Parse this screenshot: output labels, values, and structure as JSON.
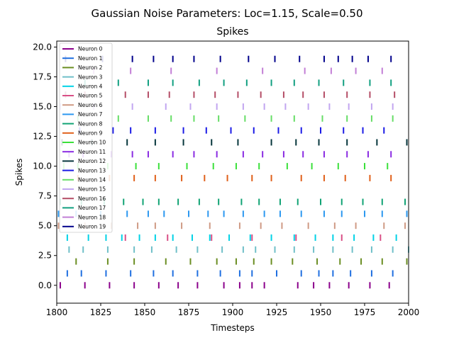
{
  "figure": {
    "suptitle": "Gaussian Noise Parameters: Loc=1.15, Scale=0.50"
  },
  "chart_data": {
    "type": "scatter",
    "marker": "vertical-line",
    "title": "Spikes",
    "xlabel": "Timesteps",
    "ylabel": "Spikes",
    "xlim": [
      1800,
      2000
    ],
    "ylim": [
      -1.5,
      20.5
    ],
    "xticks": [
      1800,
      1825,
      1850,
      1875,
      1900,
      1925,
      1950,
      1975,
      2000
    ],
    "xtick_labels": [
      "1800",
      "1825",
      "1850",
      "1875",
      "1900",
      "1925",
      "1950",
      "1975",
      "2000"
    ],
    "yticks": [
      0,
      2.5,
      5,
      7.5,
      10,
      12.5,
      15,
      17.5,
      20
    ],
    "ytick_labels": [
      "0.0",
      "2.5",
      "5.0",
      "7.5",
      "10.0",
      "12.5",
      "15.0",
      "17.5",
      "20.0"
    ],
    "grid": false,
    "legend_position": "upper-left",
    "series": [
      {
        "name": "Neuron 0",
        "color": "#8b008b",
        "y": 0,
        "x": [
          1802,
          1816,
          1830,
          1844,
          1858,
          1869,
          1880,
          1895,
          1904,
          1911,
          1918,
          1937,
          1946,
          1955,
          1966,
          1978,
          1989
        ]
      },
      {
        "name": "Neuron 1",
        "color": "#1f6fe0",
        "y": 1,
        "x": [
          1806,
          1814,
          1828,
          1842,
          1855,
          1866,
          1880,
          1893,
          1904,
          1911,
          1925,
          1939,
          1949,
          1957,
          1967,
          1979,
          1991
        ]
      },
      {
        "name": "Neuron 2",
        "color": "#6b8e23",
        "y": 2,
        "x": [
          1811,
          1829,
          1844,
          1862,
          1876,
          1891,
          1902,
          1912,
          1922,
          1934,
          1948,
          1961,
          1973,
          1985,
          1999
        ]
      },
      {
        "name": "Neuron 3",
        "color": "#6fbfc8",
        "y": 3,
        "x": [
          1807,
          1815,
          1829,
          1844,
          1854,
          1868,
          1880,
          1894,
          1906,
          1913,
          1924,
          1935,
          1946,
          1957,
          1968,
          1979,
          1991,
          2000
        ]
      },
      {
        "name": "Neuron 4",
        "color": "#00d2e6",
        "y": 4,
        "x": [
          1806,
          1818,
          1828,
          1837,
          1847,
          1856,
          1866,
          1877,
          1887,
          1898,
          1910,
          1922,
          1935,
          1947,
          1957,
          1969,
          1980,
          1993
        ]
      },
      {
        "name": "Neuron 5",
        "color": "#d94f86",
        "y": 4,
        "x": [
          1839,
          1863,
          1888,
          1911,
          1936,
          1962,
          1984
        ]
      },
      {
        "name": "Neuron 6",
        "color": "#cf9a84",
        "y": 5,
        "x": [
          1801,
          1816,
          1831,
          1846,
          1856,
          1871,
          1887,
          1904,
          1916,
          1928,
          1943,
          1958,
          1970,
          1986,
          1998
        ]
      },
      {
        "name": "Neuron 7",
        "color": "#2c98f0",
        "y": 6,
        "x": [
          1801,
          1811,
          1825,
          1840,
          1852,
          1861,
          1875,
          1886,
          1895,
          1906,
          1918,
          1927,
          1939,
          1952,
          1962,
          1975,
          1985,
          1999
        ]
      },
      {
        "name": "Neuron 8",
        "color": "#11a374",
        "y": 7,
        "x": [
          1802,
          1814,
          1827,
          1838,
          1849,
          1858,
          1869,
          1881,
          1892,
          1905,
          1915,
          1927,
          1937,
          1950,
          1962,
          1974,
          1985,
          1998
        ]
      },
      {
        "name": "Neuron 9",
        "color": "#e0601a",
        "y": 9,
        "x": [
          1812,
          1830,
          1844,
          1856,
          1871,
          1884,
          1897,
          1911,
          1922,
          1939,
          1952,
          1964,
          1978,
          1990
        ]
      },
      {
        "name": "Neuron 10",
        "color": "#3ae03a",
        "y": 10,
        "x": [
          1804,
          1812,
          1829,
          1845,
          1858,
          1874,
          1889,
          1902,
          1915,
          1931,
          1945,
          1960,
          1975,
          1988
        ]
      },
      {
        "name": "Neuron 11",
        "color": "#8a2be2",
        "y": 11,
        "x": [
          1807,
          1815,
          1831,
          1843,
          1852,
          1866,
          1878,
          1891,
          1906,
          1917,
          1929,
          1940,
          1952,
          1965,
          1977,
          1990
        ]
      },
      {
        "name": "Neuron 12",
        "color": "#06363c",
        "y": 12,
        "x": [
          1803,
          1820,
          1840,
          1856,
          1872,
          1888,
          1903,
          1922,
          1936,
          1949,
          1965,
          1982,
          1999
        ]
      },
      {
        "name": "Neuron 13",
        "color": "#1a1ae6",
        "y": 13,
        "x": [
          1813,
          1832,
          1842,
          1856,
          1872,
          1885,
          1899,
          1912,
          1926,
          1939,
          1950,
          1963,
          1974,
          1986
        ]
      },
      {
        "name": "Neuron 14",
        "color": "#66dd66",
        "y": 14,
        "x": [
          1812,
          1835,
          1852,
          1865,
          1878,
          1892,
          1907,
          1922,
          1935,
          1951,
          1965,
          1979,
          1991
        ]
      },
      {
        "name": "Neuron 15",
        "color": "#c2a6f0",
        "y": 15,
        "x": [
          1802,
          1821,
          1843,
          1862,
          1876,
          1891,
          1906,
          1918,
          1930,
          1943,
          1955,
          1966,
          1979,
          1991
        ]
      },
      {
        "name": "Neuron 16",
        "color": "#b44d66",
        "y": 16,
        "x": [
          1805,
          1816,
          1839,
          1852,
          1864,
          1878,
          1890,
          1903,
          1916,
          1929,
          1940,
          1952,
          1965,
          1978,
          1992
        ]
      },
      {
        "name": "Neuron 17",
        "color": "#119f80",
        "y": 17,
        "x": [
          1816,
          1835,
          1852,
          1866,
          1881,
          1895,
          1908,
          1922,
          1935,
          1949,
          1963,
          1978,
          1990
        ]
      },
      {
        "name": "Neuron 18",
        "color": "#c27ed6",
        "y": 18,
        "x": [
          1821,
          1842,
          1865,
          1891,
          1917,
          1941,
          1956,
          1970,
          1985
        ]
      },
      {
        "name": "Neuron 19",
        "color": "#00008b",
        "y": 19,
        "x": [
          1805,
          1826,
          1843,
          1855,
          1866,
          1878,
          1893,
          1909,
          1924,
          1938,
          1952,
          1960,
          1968,
          1977,
          1990
        ]
      }
    ]
  }
}
